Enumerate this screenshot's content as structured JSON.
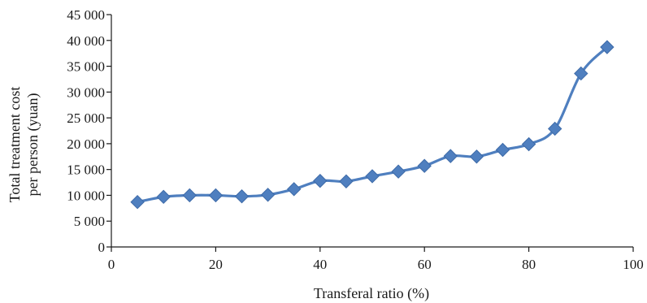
{
  "chart_data": {
    "type": "line",
    "xlabel": "Transferal ratio (%)",
    "ylabel_lines": [
      "Total treatment cost",
      "per person (yuan)"
    ],
    "xlim": [
      0,
      100
    ],
    "ylim": [
      0,
      45000
    ],
    "x_ticks": [
      0,
      20,
      40,
      60,
      80,
      100
    ],
    "x_tick_labels": [
      "0",
      "20",
      "40",
      "60",
      "80",
      "100"
    ],
    "y_ticks": [
      0,
      5000,
      10000,
      15000,
      20000,
      25000,
      30000,
      35000,
      40000,
      45000
    ],
    "y_tick_labels": [
      "0",
      "5 000",
      "10 000",
      "15 000",
      "20 000",
      "25 000",
      "30 000",
      "35 000",
      "40 000",
      "45 000"
    ],
    "grid": false,
    "legend": "none",
    "series": [
      {
        "color": "#4f7fbf",
        "marker": "diamond",
        "x": [
          5,
          10,
          15,
          20,
          25,
          30,
          35,
          40,
          45,
          50,
          55,
          60,
          65,
          70,
          75,
          80,
          85,
          90,
          95
        ],
        "y": [
          8700,
          9700,
          10000,
          10000,
          9800,
          10100,
          11200,
          12800,
          12700,
          13700,
          14600,
          15700,
          17600,
          17500,
          18800,
          19900,
          22900,
          33600,
          38700
        ]
      }
    ]
  }
}
